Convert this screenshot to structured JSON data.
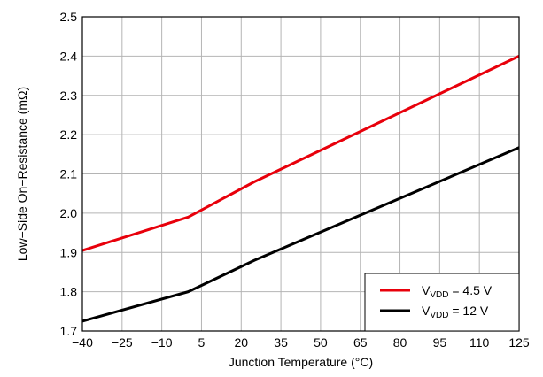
{
  "chart_data": {
    "type": "line",
    "title": "",
    "xlabel": "Junction Temperature (°C)",
    "ylabel": "Low−Side On−Resistance (mΩ)",
    "xlim": [
      -40,
      125
    ],
    "ylim": [
      1.7,
      2.5
    ],
    "x_ticks": [
      -40,
      -25,
      -10,
      5,
      20,
      35,
      50,
      65,
      80,
      95,
      110,
      125
    ],
    "x_tick_labels": [
      "−40",
      "−25",
      "−10",
      "5",
      "20",
      "35",
      "50",
      "65",
      "80",
      "95",
      "110",
      "125"
    ],
    "y_ticks": [
      1.7,
      1.8,
      1.9,
      2.0,
      2.1,
      2.2,
      2.3,
      2.4,
      2.5
    ],
    "y_tick_labels": [
      "1.7",
      "1.8",
      "1.9",
      "2.0",
      "2.1",
      "2.2",
      "2.3",
      "2.4",
      "2.5"
    ],
    "grid": true,
    "legend_position": "bottom-right",
    "series": [
      {
        "name_main": "V",
        "name_sub": "VDD",
        "name_rest": " = 4.5 V",
        "color": "#e8000b",
        "x": [
          -40,
          0,
          25,
          125
        ],
        "y": [
          1.905,
          1.99,
          2.08,
          2.4
        ]
      },
      {
        "name_main": "V",
        "name_sub": "VDD",
        "name_rest": " = 12 V",
        "color": "#000000",
        "x": [
          -40,
          0,
          25,
          125
        ],
        "y": [
          1.725,
          1.8,
          1.88,
          2.167
        ]
      }
    ]
  }
}
